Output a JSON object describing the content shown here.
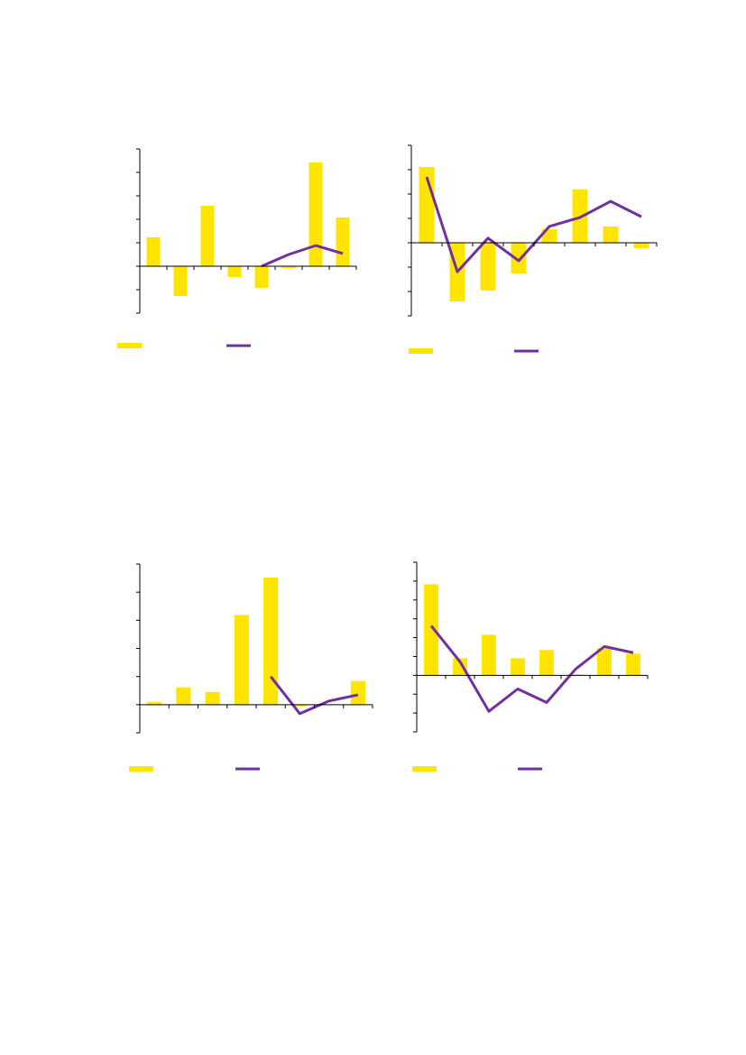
{
  "chart_data": [
    {
      "type": "bar",
      "categories": [
        null,
        null,
        null,
        null,
        null,
        null,
        null,
        null
      ],
      "ylim": [
        -2,
        5
      ],
      "yticks": [
        -2,
        -1,
        0,
        1,
        2,
        3,
        4,
        5
      ],
      "series": [
        {
          "color": "#ffe500",
          "values": [
            1.23,
            -1.27,
            2.58,
            -0.46,
            -0.92,
            -0.08,
            4.42,
            2.08
          ]
        },
        {
          "type": "line",
          "color": "#7030a0",
          "values": [
            null,
            null,
            null,
            null,
            0,
            0.5,
            0.88,
            0.54
          ]
        }
      ]
    },
    {
      "type": "bar",
      "categories": [
        null,
        null,
        null,
        null,
        null,
        null,
        null,
        null
      ],
      "ylim": [
        -3,
        4
      ],
      "yticks": [
        -3,
        -2,
        -1,
        0,
        1,
        2,
        3,
        4
      ],
      "series": [
        {
          "color": "#ffe500",
          "values": [
            3.11,
            -2.41,
            -1.96,
            -1.26,
            0.56,
            2.19,
            0.67,
            -0.22
          ]
        },
        {
          "type": "line",
          "color": "#7030a0",
          "values": [
            2.7,
            -1.19,
            0.19,
            -0.74,
            0.67,
            1.04,
            1.7,
            1.07
          ]
        }
      ]
    },
    {
      "type": "bar",
      "categories": [
        null,
        null,
        null,
        null,
        null,
        null,
        null,
        null
      ],
      "ylim": [
        -1,
        5
      ],
      "yticks": [
        -1,
        0,
        1,
        2,
        3,
        4,
        5
      ],
      "series": [
        {
          "color": "#ffe500",
          "values": [
            0.1,
            0.61,
            0.45,
            3.19,
            4.52,
            -0.06,
            0,
            0.84
          ]
        },
        {
          "type": "line",
          "color": "#7030a0",
          "values": [
            null,
            null,
            null,
            null,
            1.0,
            -0.32,
            0.13,
            0.35
          ]
        }
      ]
    },
    {
      "type": "bar",
      "categories": [
        null,
        null,
        null,
        null,
        null,
        null,
        null,
        null
      ],
      "ylim": [
        -3,
        6
      ],
      "yticks": [
        -3,
        -2,
        -1,
        0,
        1,
        2,
        3,
        4,
        5,
        6
      ],
      "series": [
        {
          "color": "#ffe500",
          "values": [
            4.83,
            0.91,
            2.15,
            0.91,
            1.34,
            0.05,
            1.44,
            1.15
          ]
        },
        {
          "type": "line",
          "color": "#7030a0",
          "values": [
            2.63,
            0.72,
            -1.91,
            -0.72,
            -1.44,
            0.33,
            1.53,
            1.2
          ]
        }
      ]
    }
  ]
}
